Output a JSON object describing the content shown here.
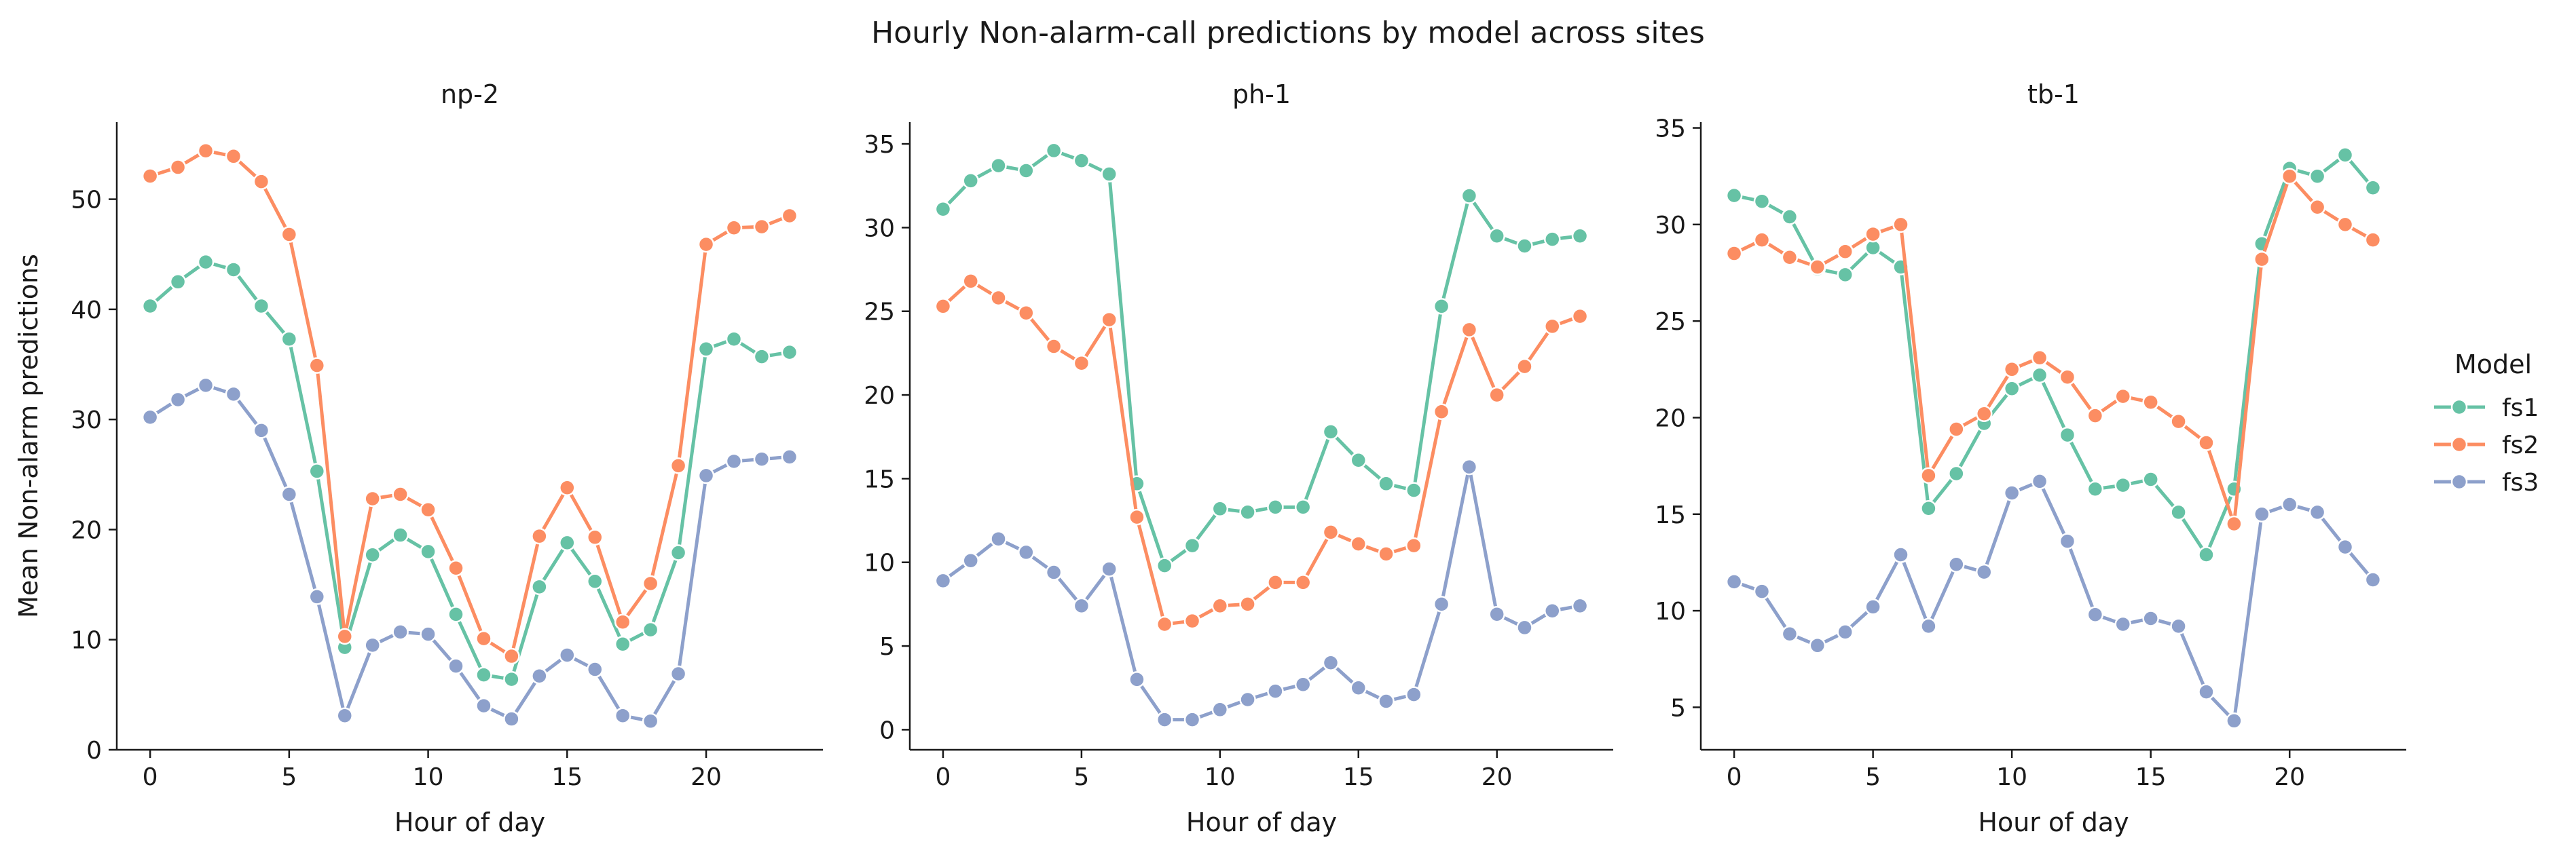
{
  "figure": {
    "title": "Hourly Non-alarm-call predictions by model across sites"
  },
  "legend": {
    "title": "Model",
    "placement": "right"
  },
  "chart_data": [
    {
      "type": "line",
      "title": "np-2",
      "xlabel": "Hour of day",
      "ylabel": "Mean Non-alarm predictions",
      "xlim": [
        -1.2,
        24.2
      ],
      "ylim": [
        0,
        57
      ],
      "xticks": [
        0,
        5,
        10,
        15,
        20
      ],
      "yticks": [
        0,
        10,
        20,
        30,
        40,
        50
      ],
      "x": [
        0,
        1,
        2,
        3,
        4,
        5,
        6,
        7,
        8,
        9,
        10,
        11,
        12,
        13,
        14,
        15,
        16,
        17,
        18,
        19,
        20,
        21,
        22,
        23
      ],
      "series": [
        {
          "name": "fs1",
          "color": "#66c2a5",
          "values": [
            40.3,
            42.5,
            44.3,
            43.6,
            40.3,
            37.3,
            25.3,
            9.3,
            17.7,
            19.5,
            18.0,
            12.3,
            6.8,
            6.4,
            14.8,
            18.8,
            15.3,
            9.6,
            10.9,
            17.9,
            36.4,
            37.3,
            35.7,
            36.1
          ]
        },
        {
          "name": "fs2",
          "color": "#fc8d62",
          "values": [
            52.1,
            52.9,
            54.4,
            53.9,
            51.6,
            46.8,
            34.9,
            10.3,
            22.8,
            23.2,
            21.8,
            16.5,
            10.1,
            8.5,
            19.4,
            23.8,
            19.3,
            11.6,
            15.1,
            25.8,
            45.9,
            47.4,
            47.5,
            48.5
          ]
        },
        {
          "name": "fs3",
          "color": "#8da0cb",
          "values": [
            30.2,
            31.8,
            33.1,
            32.3,
            29.0,
            23.2,
            13.9,
            3.1,
            9.5,
            10.7,
            10.5,
            7.6,
            4.0,
            2.8,
            6.7,
            8.6,
            7.3,
            3.1,
            2.6,
            6.9,
            24.9,
            26.2,
            26.4,
            26.6
          ]
        }
      ]
    },
    {
      "type": "line",
      "title": "ph-1",
      "xlabel": "Hour of day",
      "ylabel": "",
      "xlim": [
        -1.2,
        24.2
      ],
      "ylim": [
        -1.2,
        36.3
      ],
      "xticks": [
        0,
        5,
        10,
        15,
        20
      ],
      "yticks": [
        0,
        5,
        10,
        15,
        20,
        25,
        30,
        35
      ],
      "x": [
        0,
        1,
        2,
        3,
        4,
        5,
        6,
        7,
        8,
        9,
        10,
        11,
        12,
        13,
        14,
        15,
        16,
        17,
        18,
        19,
        20,
        21,
        22,
        23
      ],
      "series": [
        {
          "name": "fs1",
          "color": "#66c2a5",
          "values": [
            31.1,
            32.8,
            33.7,
            33.4,
            34.6,
            34.0,
            33.2,
            14.7,
            9.8,
            11.0,
            13.2,
            13.0,
            13.3,
            13.3,
            17.8,
            16.1,
            14.7,
            14.3,
            25.3,
            31.9,
            29.5,
            28.9,
            29.3,
            29.5
          ]
        },
        {
          "name": "fs2",
          "color": "#fc8d62",
          "values": [
            25.3,
            26.8,
            25.8,
            24.9,
            22.9,
            21.9,
            24.5,
            12.7,
            6.3,
            6.5,
            7.4,
            7.5,
            8.8,
            8.8,
            11.8,
            11.1,
            10.5,
            11.0,
            19.0,
            23.9,
            20.0,
            21.7,
            24.1,
            24.7
          ]
        },
        {
          "name": "fs3",
          "color": "#8da0cb",
          "values": [
            8.9,
            10.1,
            11.4,
            10.6,
            9.4,
            7.4,
            9.6,
            3.0,
            0.6,
            0.6,
            1.2,
            1.8,
            2.3,
            2.7,
            4.0,
            2.5,
            1.7,
            2.1,
            7.5,
            15.7,
            6.9,
            6.1,
            7.1,
            7.4
          ]
        }
      ]
    },
    {
      "type": "line",
      "title": "tb-1",
      "xlabel": "Hour of day",
      "ylabel": "",
      "xlim": [
        -1.2,
        24.2
      ],
      "ylim": [
        2.8,
        35.3
      ],
      "xticks": [
        0,
        5,
        10,
        15,
        20
      ],
      "yticks": [
        5,
        10,
        15,
        20,
        25,
        30,
        35
      ],
      "x": [
        0,
        1,
        2,
        3,
        4,
        5,
        6,
        7,
        8,
        9,
        10,
        11,
        12,
        13,
        14,
        15,
        16,
        17,
        18,
        19,
        20,
        21,
        22,
        23
      ],
      "series": [
        {
          "name": "fs1",
          "color": "#66c2a5",
          "values": [
            31.5,
            31.2,
            30.4,
            27.7,
            27.4,
            28.8,
            27.8,
            15.3,
            17.1,
            19.7,
            21.5,
            22.2,
            19.1,
            16.3,
            16.5,
            16.8,
            15.1,
            12.9,
            16.3,
            29.0,
            32.9,
            32.5,
            33.6,
            31.9
          ]
        },
        {
          "name": "fs2",
          "color": "#fc8d62",
          "values": [
            28.5,
            29.2,
            28.3,
            27.8,
            28.6,
            29.5,
            30.0,
            17.0,
            19.4,
            20.2,
            22.5,
            23.1,
            22.1,
            20.1,
            21.1,
            20.8,
            19.8,
            18.7,
            14.5,
            28.2,
            32.5,
            30.9,
            30.0,
            29.2
          ]
        },
        {
          "name": "fs3",
          "color": "#8da0cb",
          "values": [
            11.5,
            11.0,
            8.8,
            8.2,
            8.9,
            10.2,
            12.9,
            9.2,
            12.4,
            12.0,
            16.1,
            16.7,
            13.6,
            9.8,
            9.3,
            9.6,
            9.2,
            5.8,
            4.3,
            15.0,
            15.5,
            15.1,
            13.3,
            11.6
          ]
        }
      ]
    }
  ]
}
